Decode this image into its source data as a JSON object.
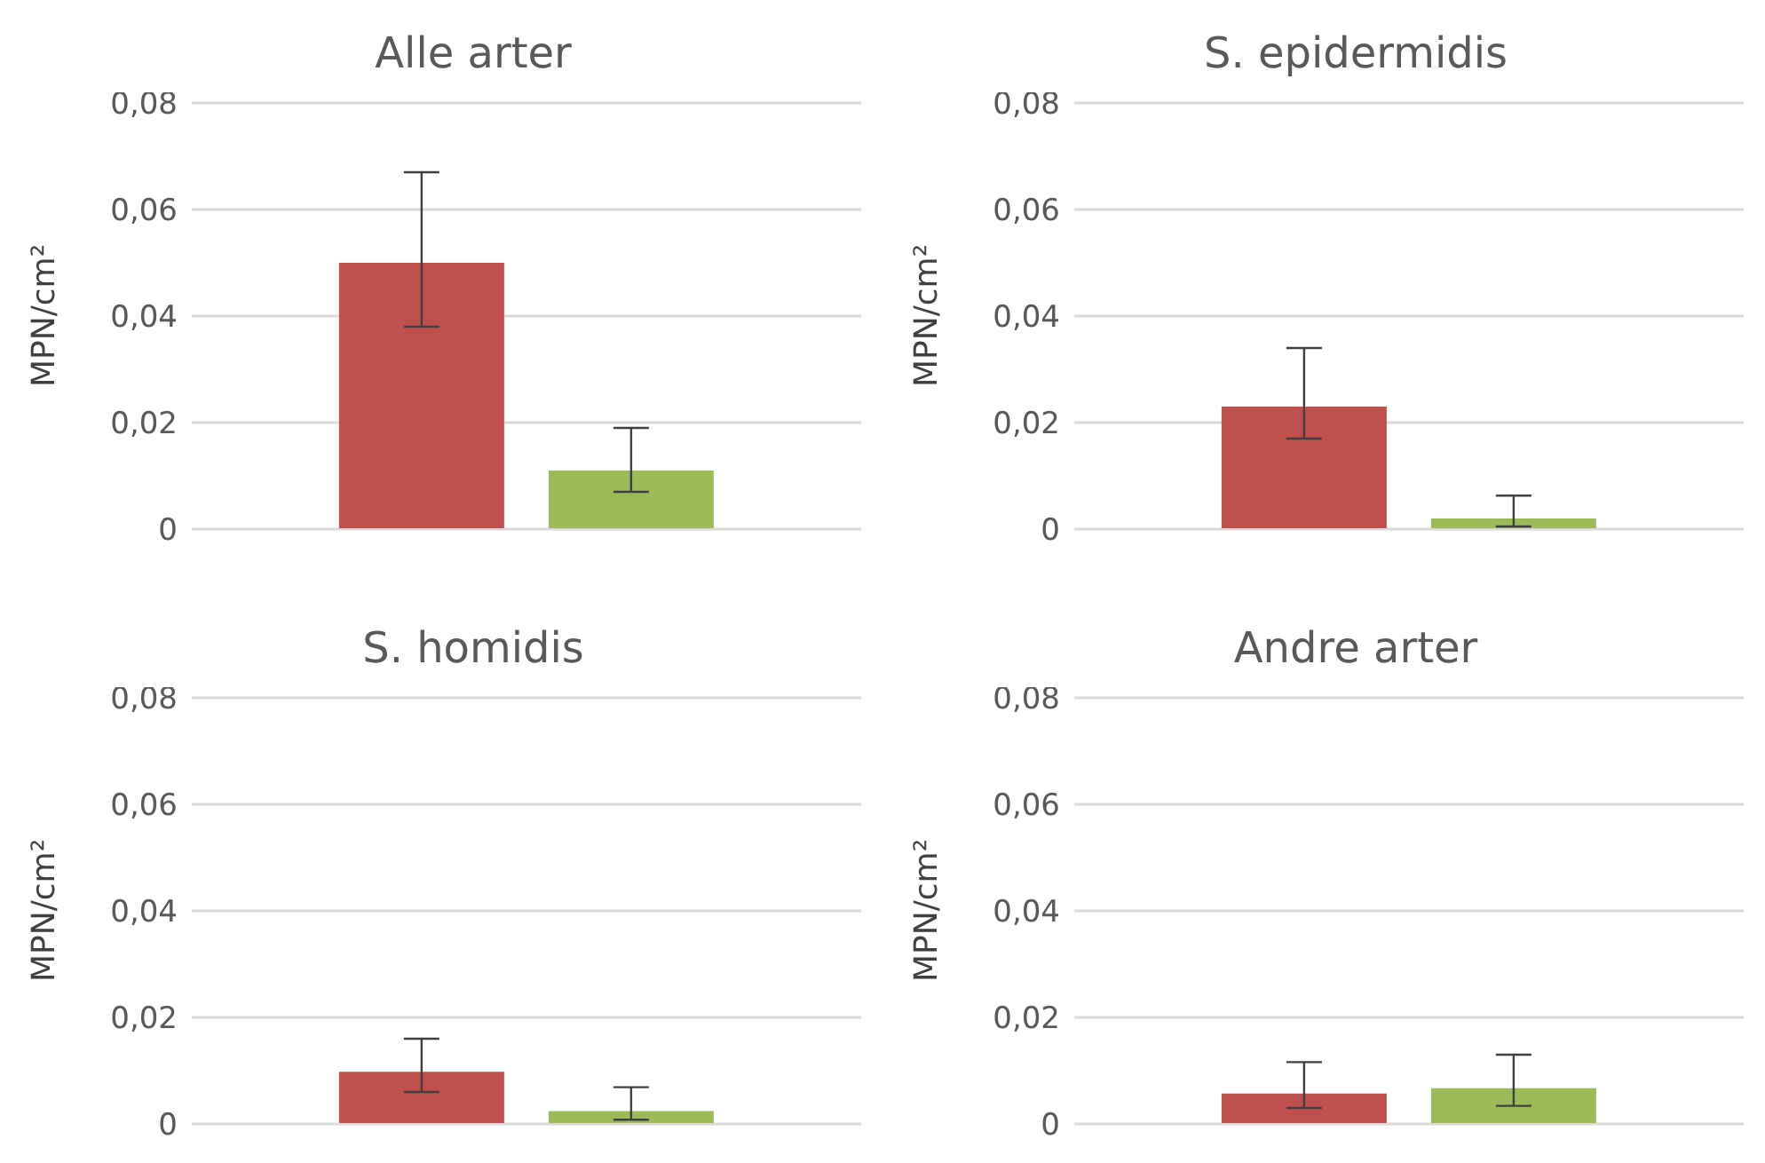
{
  "chart_data": [
    {
      "type": "bar",
      "title": "Alle arter",
      "ylabel": "MPN/cm²",
      "categories": [
        null
      ],
      "series": [
        {
          "color": "#c0504d",
          "values": [
            0.05
          ],
          "errors": [
            [
              0.038,
              0.067
            ]
          ]
        },
        {
          "color": "#9bbb59",
          "values": [
            0.011
          ],
          "errors": [
            [
              0.007,
              0.019
            ]
          ]
        }
      ],
      "ylim": [
        0,
        0.08
      ],
      "yticks": [
        {
          "value": 0,
          "label": "0"
        },
        {
          "value": 0.02,
          "label": "0,02"
        },
        {
          "value": 0.04,
          "label": "0,04"
        },
        {
          "value": 0.06,
          "label": "0,06"
        },
        {
          "value": 0.08,
          "label": "0,08"
        }
      ],
      "grid": "y",
      "tick_labels": "y",
      "legend": false
    },
    {
      "type": "bar",
      "title": "S. epidermidis",
      "ylabel": "MPN/cm²",
      "categories": [
        null
      ],
      "series": [
        {
          "color": "#c0504d",
          "values": [
            0.023
          ],
          "errors": [
            [
              0.017,
              0.034
            ]
          ]
        },
        {
          "color": "#9bbb59",
          "values": [
            0.002
          ],
          "errors": [
            [
              0.0005,
              0.0063
            ]
          ]
        }
      ],
      "ylim": [
        0,
        0.08
      ],
      "yticks": [
        {
          "value": 0,
          "label": "0"
        },
        {
          "value": 0.02,
          "label": "0,02"
        },
        {
          "value": 0.04,
          "label": "0,04"
        },
        {
          "value": 0.06,
          "label": "0,06"
        },
        {
          "value": 0.08,
          "label": "0,08"
        }
      ],
      "grid": "y",
      "tick_labels": "y",
      "legend": false
    },
    {
      "type": "bar",
      "title": "S. homidis",
      "ylabel": "MPN/cm²",
      "categories": [
        null
      ],
      "series": [
        {
          "color": "#c0504d",
          "values": [
            0.0098
          ],
          "errors": [
            [
              0.006,
              0.016
            ]
          ]
        },
        {
          "color": "#9bbb59",
          "values": [
            0.0024
          ],
          "errors": [
            [
              0.0008,
              0.0069
            ]
          ]
        }
      ],
      "ylim": [
        0,
        0.08
      ],
      "yticks": [
        {
          "value": 0,
          "label": "0"
        },
        {
          "value": 0.02,
          "label": "0,02"
        },
        {
          "value": 0.04,
          "label": "0,04"
        },
        {
          "value": 0.06,
          "label": "0,06"
        },
        {
          "value": 0.08,
          "label": "0,08"
        }
      ],
      "grid": "y",
      "tick_labels": "y",
      "legend": false
    },
    {
      "type": "bar",
      "title": "Andre arter",
      "ylabel": "MPN/cm²",
      "categories": [
        null
      ],
      "series": [
        {
          "color": "#c0504d",
          "values": [
            0.0057
          ],
          "errors": [
            [
              0.003,
              0.0116
            ]
          ]
        },
        {
          "color": "#9bbb59",
          "values": [
            0.0067
          ],
          "errors": [
            [
              0.0034,
              0.013
            ]
          ]
        }
      ],
      "ylim": [
        0,
        0.08
      ],
      "yticks": [
        {
          "value": 0,
          "label": "0"
        },
        {
          "value": 0.02,
          "label": "0,02"
        },
        {
          "value": 0.04,
          "label": "0,04"
        },
        {
          "value": 0.06,
          "label": "0,06"
        },
        {
          "value": 0.08,
          "label": "0,08"
        }
      ],
      "grid": "y",
      "tick_labels": "y",
      "legend": false
    }
  ]
}
